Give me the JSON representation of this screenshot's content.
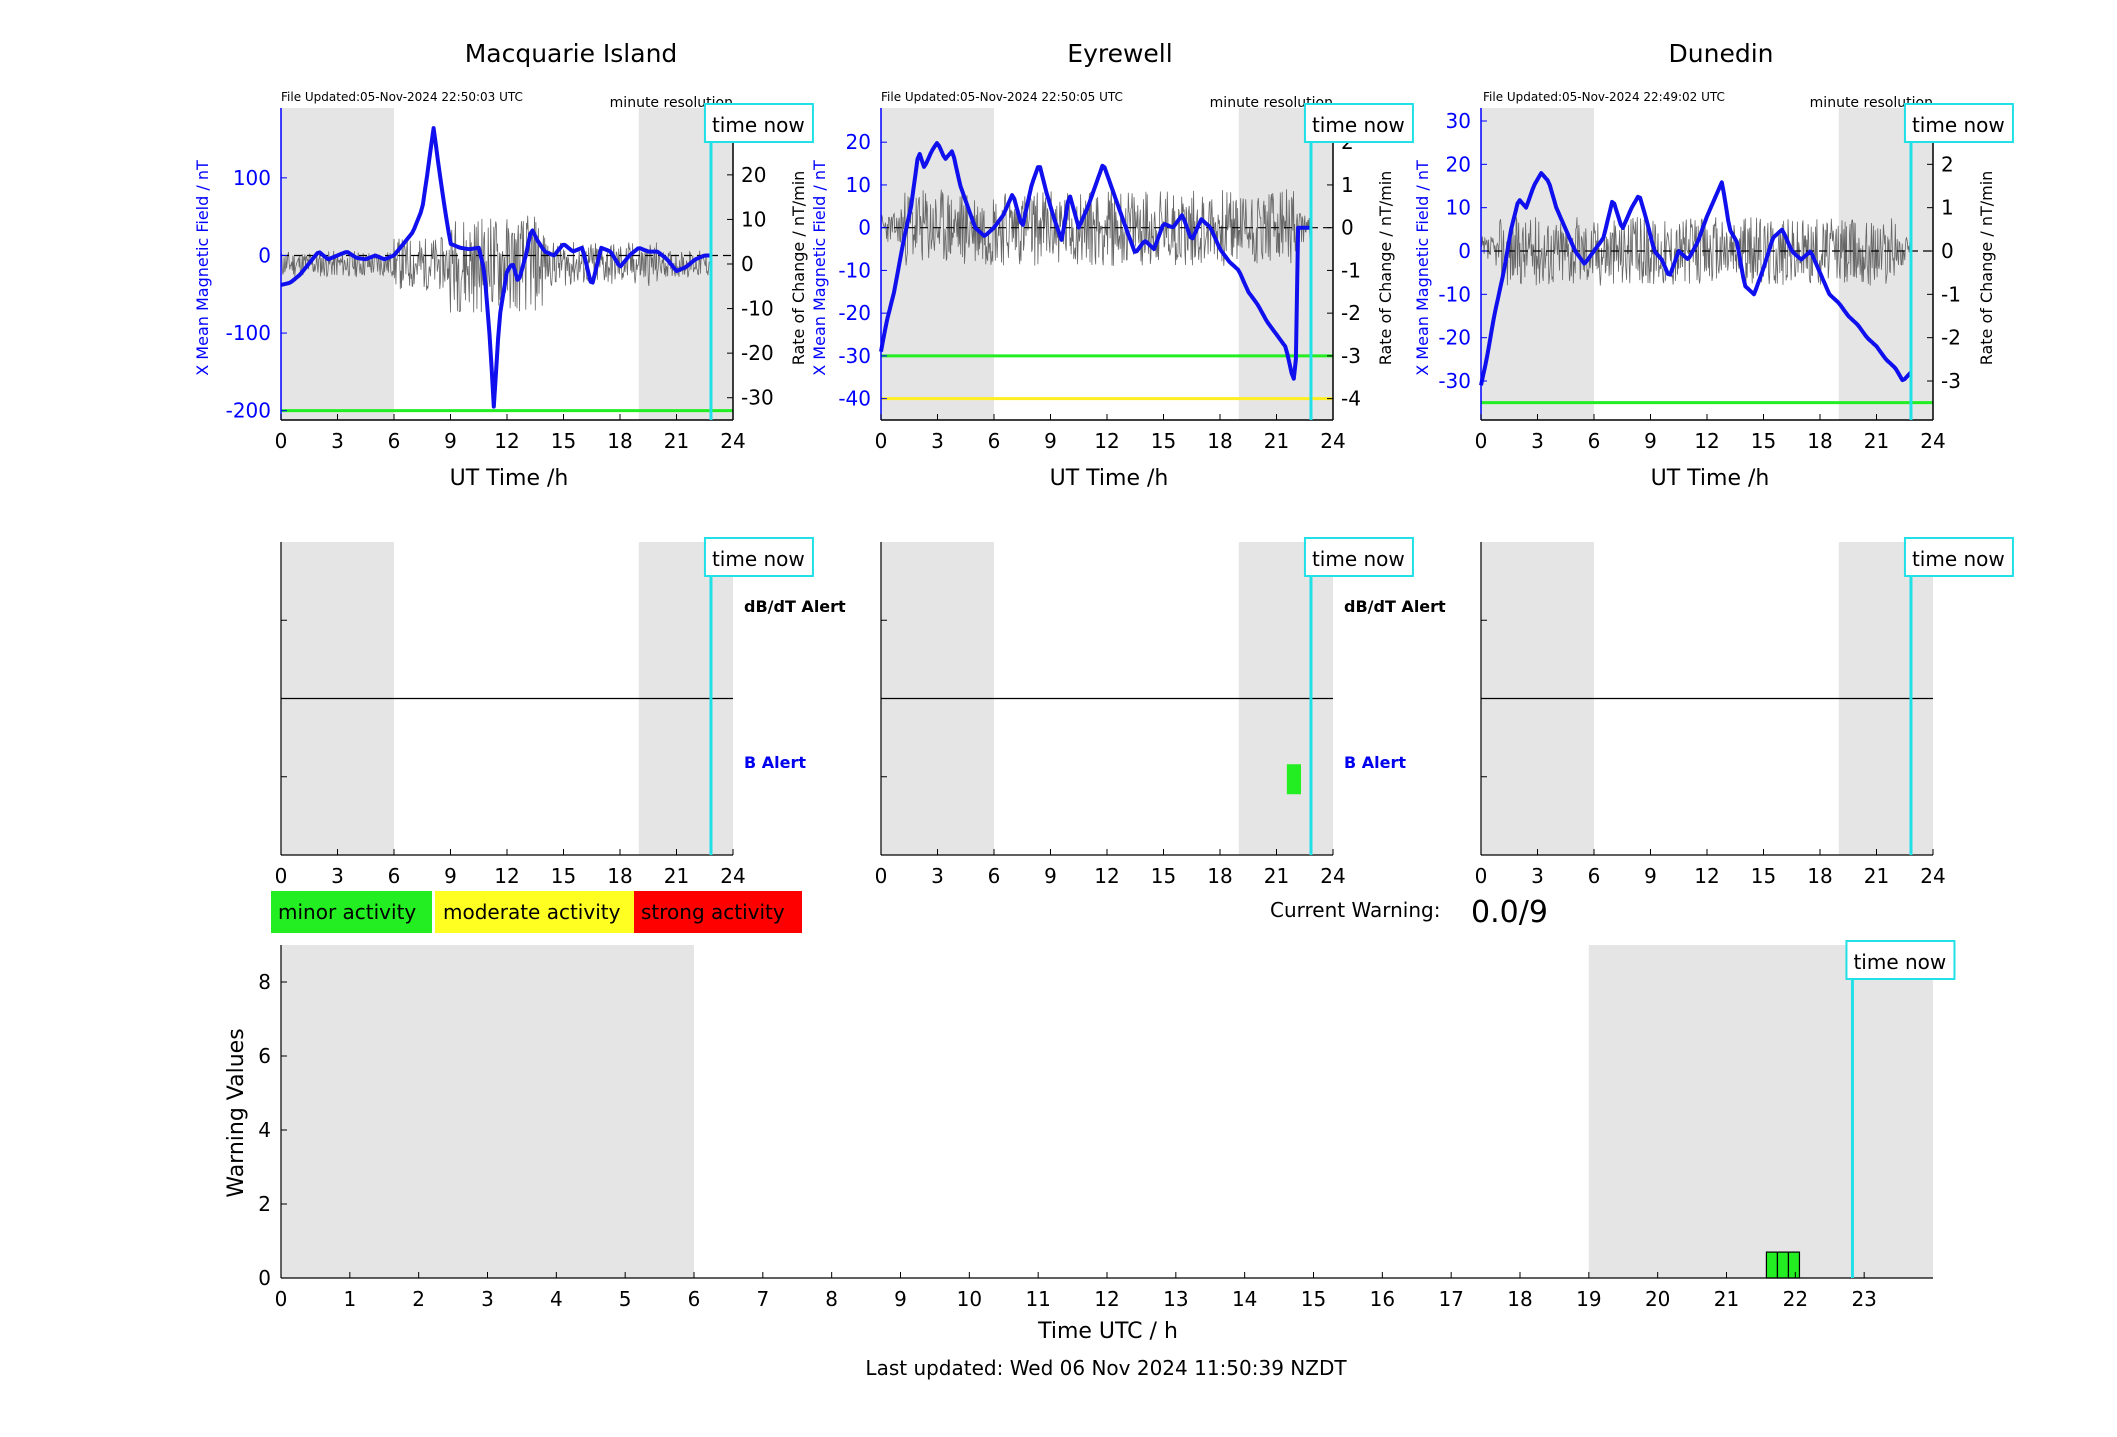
{
  "stations": [
    {
      "title": "Macquarie Island",
      "file_updated": "File Updated:05-Nov-2024 22:50:03 UTC",
      "resolution": "minute resolution",
      "ylabel_left": "X Mean Magnetic Field / nT",
      "ylabel_right": "Rate of Change / nT/min",
      "xlabel": "UT Time /h",
      "left_ylim": [
        -212,
        190
      ],
      "left_ticks": [
        -200,
        -100,
        0,
        100
      ],
      "right_ylim": [
        -35,
        35
      ],
      "right_ticks": [
        -30,
        -20,
        -10,
        0,
        10,
        20,
        30
      ],
      "threshold_lines": [
        {
          "value": -200,
          "color": "#22ee22"
        }
      ],
      "x_field": [
        0,
        0.5,
        1,
        1.5,
        2,
        2.5,
        3,
        3.5,
        4,
        4.5,
        5,
        5.5,
        6,
        6.5,
        7,
        7.5,
        7.8,
        8.1,
        8.4,
        8.7,
        9,
        9.5,
        10,
        10.5,
        10.8,
        11.1,
        11.3,
        11.6,
        12,
        12.3,
        12.6,
        13,
        13.3,
        13.6,
        14,
        14.5,
        15,
        15.5,
        16,
        16.5,
        17,
        17.5,
        18,
        18.5,
        19,
        19.5,
        20,
        20.5,
        21,
        21.5,
        22,
        22.5,
        22.83
      ],
      "field": [
        -38,
        -35,
        -25,
        -10,
        5,
        -5,
        0,
        5,
        -3,
        -5,
        0,
        -5,
        0,
        15,
        30,
        60,
        110,
        165,
        110,
        60,
        15,
        10,
        8,
        10,
        -20,
        -110,
        -195,
        -80,
        -20,
        -10,
        -35,
        0,
        35,
        20,
        5,
        0,
        15,
        5,
        10,
        -40,
        10,
        5,
        -15,
        0,
        10,
        5,
        5,
        -5,
        -20,
        -15,
        -5,
        0,
        0
      ],
      "roc_amplitude": 3,
      "roc_seed": 11,
      "roc_bursts": [
        [
          6,
          9,
          6
        ],
        [
          9,
          14,
          11
        ],
        [
          14,
          20,
          5
        ],
        [
          20,
          23,
          3
        ]
      ]
    },
    {
      "title": "Eyrewell",
      "file_updated": "File Updated:05-Nov-2024 22:50:05 UTC",
      "resolution": "minute resolution",
      "ylabel_left": "X Mean Magnetic Field / nT",
      "ylabel_right": "Rate of Change / nT/min",
      "xlabel": "UT Time /h",
      "left_ylim": [
        -45,
        28
      ],
      "left_ticks": [
        -40,
        -30,
        -20,
        -10,
        0,
        10,
        20
      ],
      "right_ylim": [
        -4.5,
        2.8
      ],
      "right_ticks": [
        -4,
        -3,
        -2,
        -1,
        0,
        1,
        2
      ],
      "threshold_lines": [
        {
          "value": -30,
          "color": "#22ee22"
        },
        {
          "value": -40,
          "color": "#ffee22"
        }
      ],
      "x_field": [
        0,
        0.3,
        0.7,
        1.2,
        1.6,
        2,
        2.3,
        2.7,
        3,
        3.4,
        3.8,
        4.2,
        4.6,
        5,
        5.5,
        6,
        6.5,
        7,
        7.5,
        8,
        8.4,
        8.8,
        9.2,
        9.6,
        10,
        10.5,
        11,
        11.4,
        11.8,
        12.2,
        12.6,
        13,
        13.5,
        14,
        14.5,
        15,
        15.5,
        16,
        16.5,
        17,
        17.5,
        18,
        18.5,
        19,
        19.5,
        20,
        20.5,
        21,
        21.5,
        21.9,
        22.05,
        22.1,
        22.4,
        22.83
      ],
      "field": [
        -29,
        -22,
        -15,
        -3,
        5,
        18,
        14,
        18,
        20,
        16,
        18,
        10,
        5,
        0,
        -2,
        0,
        3,
        8,
        0,
        10,
        15,
        8,
        2,
        -3,
        8,
        0,
        5,
        10,
        15,
        10,
        5,
        0,
        -6,
        -3,
        -5,
        1,
        0,
        3,
        -3,
        2,
        0,
        -5,
        -8,
        -10,
        -15,
        -18,
        -22,
        -25,
        -28,
        -36,
        -30,
        0,
        0,
        0
      ],
      "roc_amplitude": 0.35,
      "roc_seed": 23,
      "roc_bursts": [
        [
          1,
          22,
          0.9
        ]
      ]
    },
    {
      "title": "Dunedin",
      "file_updated": "File Updated:05-Nov-2024 22:49:02 UTC",
      "resolution": "minute resolution",
      "ylabel_left": "X Mean Magnetic Field / nT",
      "ylabel_right": "Rate of Change / nT/min",
      "xlabel": "UT Time /h",
      "left_ylim": [
        -39,
        33
      ],
      "left_ticks": [
        -30,
        -20,
        -10,
        0,
        10,
        20,
        30
      ],
      "right_ylim": [
        -3.9,
        3.3
      ],
      "right_ticks": [
        -3,
        -2,
        -1,
        0,
        1,
        2,
        3
      ],
      "threshold_lines": [
        {
          "value": -35,
          "color": "#22ee22"
        }
      ],
      "x_field": [
        0,
        0.3,
        0.7,
        1.2,
        1.6,
        2,
        2.4,
        2.8,
        3.2,
        3.6,
        4,
        4.5,
        5,
        5.5,
        6,
        6.5,
        7,
        7.5,
        8,
        8.4,
        8.8,
        9.2,
        9.6,
        10,
        10.5,
        11,
        11.5,
        12,
        12.4,
        12.8,
        13.2,
        13.6,
        14,
        14.5,
        15,
        15.5,
        16,
        16.5,
        17,
        17.5,
        18,
        18.5,
        19,
        19.5,
        20,
        20.5,
        21,
        21.5,
        22,
        22.4,
        22.83
      ],
      "field": [
        -31,
        -25,
        -15,
        -5,
        5,
        12,
        10,
        15,
        18,
        16,
        10,
        5,
        0,
        -3,
        0,
        3,
        12,
        5,
        10,
        13,
        7,
        0,
        -2,
        -6,
        0,
        -2,
        2,
        8,
        12,
        16,
        5,
        2,
        -8,
        -10,
        -4,
        3,
        5,
        0,
        -2,
        0,
        -5,
        -10,
        -12,
        -15,
        -17,
        -20,
        -22,
        -25,
        -27,
        -30,
        -28
      ],
      "roc_amplitude": 0.35,
      "roc_seed": 37,
      "roc_bursts": [
        [
          1,
          22,
          0.8
        ]
      ]
    }
  ],
  "time_now_label": "time now",
  "time_now_hour": 22.83,
  "x_ticks": [
    0,
    3,
    6,
    9,
    12,
    15,
    18,
    21,
    24
  ],
  "shading": [
    [
      0,
      6
    ],
    [
      19,
      24
    ]
  ],
  "alert_labels": {
    "top": "dB/dT Alert",
    "bottom": "B Alert"
  },
  "alert_bars": [
    [],
    [
      {
        "start": 21.55,
        "end": 22.3,
        "level": "minor"
      }
    ],
    []
  ],
  "legend": [
    {
      "label": "minor activity",
      "color": "#22ee22"
    },
    {
      "label": "moderate activity",
      "color": "#ffff22"
    },
    {
      "label": "strong activity",
      "color": "#ff0000"
    }
  ],
  "current_warning_label": "Current Warning:",
  "current_warning_value": "0.0/9",
  "chart_data": {
    "type": "bar",
    "title": "",
    "xlabel": "Time UTC / h",
    "ylabel": "Warning Values",
    "xlim": [
      0,
      24
    ],
    "ylim": [
      0,
      9
    ],
    "x_ticks": [
      0,
      1,
      2,
      3,
      4,
      5,
      6,
      7,
      8,
      9,
      10,
      11,
      12,
      13,
      14,
      15,
      16,
      17,
      18,
      19,
      20,
      21,
      22,
      23
    ],
    "y_ticks": [
      0,
      2,
      4,
      6,
      8
    ],
    "shading": [
      [
        0,
        6
      ],
      [
        19,
        24
      ]
    ],
    "bars": [
      {
        "x": 21.58,
        "width": 0.16,
        "value": 0.7,
        "color": "#22ee22"
      },
      {
        "x": 21.74,
        "width": 0.16,
        "value": 0.7,
        "color": "#22ee22"
      },
      {
        "x": 21.9,
        "width": 0.16,
        "value": 0.7,
        "color": "#22ee22"
      }
    ],
    "time_now": 22.83,
    "time_now_label": "time now"
  },
  "last_updated": "Last updated: Wed 06 Nov 2024 11:50:39 NZDT"
}
